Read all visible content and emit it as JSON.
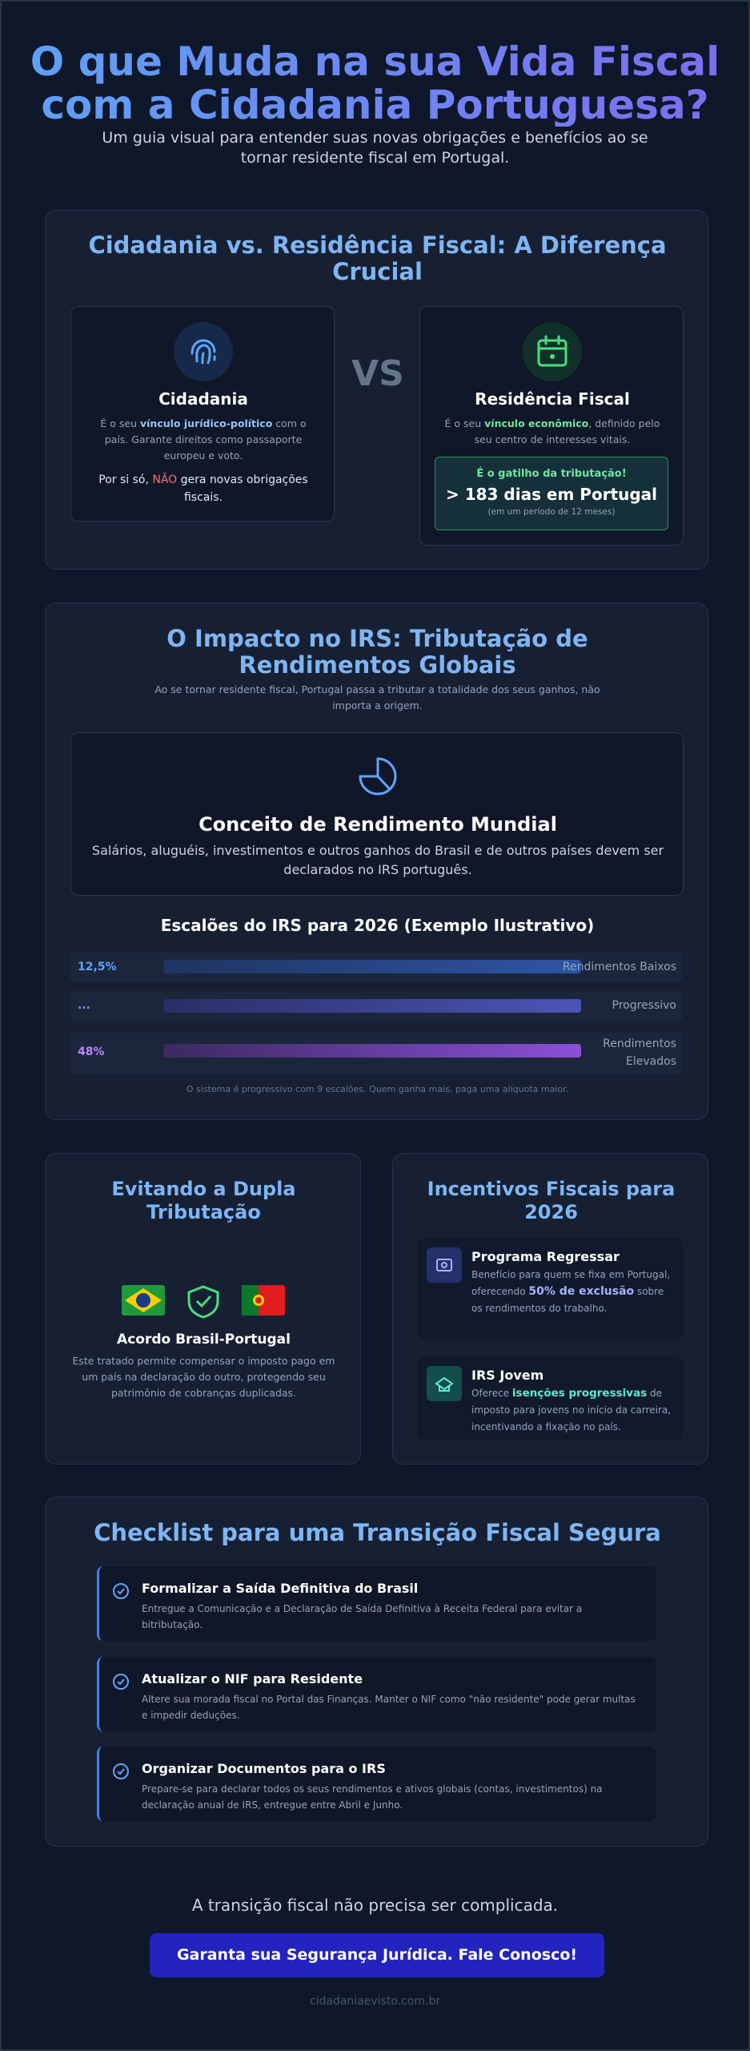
{
  "header": {
    "title_lines": [
      "O que Muda na sua Vida Fiscal",
      "com a Cidadania Portuguesa?"
    ],
    "subtitle": "Um guia visual para entender suas novas obrigações e benefícios ao se tornar residente fiscal em Portugal."
  },
  "comparison": {
    "title": "Cidadania vs. Residência Fiscal: A Diferença Crucial",
    "vs": "VS",
    "citizenship": {
      "title": "Cidadania",
      "desc": [
        "É o seu ",
        "vínculo jurídico-político",
        " com o país. Garante direitos como passaporte europeu e voto."
      ],
      "note": [
        "Por si só, ",
        "NÃO",
        " gera novas obrigações fiscais."
      ]
    },
    "residence": {
      "title": "Residência Fiscal",
      "desc": [
        "É o seu ",
        "vínculo econômico",
        ", definido pelo seu centro de interesses vitais."
      ],
      "callout": {
        "label": "É o gatilho da tributação!",
        "value": "> 183 dias em Portugal",
        "note": "(em um período de 12 meses)"
      }
    }
  },
  "irs": {
    "title": "O Impacto no IRS: Tributação de Rendimentos Globais",
    "subtitle": "Ao se tornar residente fiscal, Portugal passa a tributar a totalidade dos seus ganhos, não importa a origem.",
    "concept": {
      "title": "Conceito de Rendimento Mundial",
      "text": "Salários, aluguéis, investimentos e outros ganhos do Brasil e de outros países devem ser declarados no IRS português."
    },
    "brackets": {
      "title": "Escalões do IRS para 2026 (Exemplo Ilustrativo)",
      "rows": [
        {
          "rate": "12,5%",
          "label": "Rendimentos Baixos"
        },
        {
          "rate": "...",
          "label": "Progressivo"
        },
        {
          "rate": "48%",
          "label": "Rendimentos Elevados"
        }
      ],
      "note": "O sistema é progressivo com 9 escalões. Quem ganha mais, paga uma alíquota maior."
    }
  },
  "double_tax": {
    "title": "Evitando a Dupla Tributação",
    "agreement": "Acordo Brasil-Portugal",
    "text": "Este tratado permite compensar o imposto pago em um país na declaração do outro, protegendo seu patrimônio de cobranças duplicadas."
  },
  "incentives": {
    "title": "Incentivos Fiscais para 2026",
    "items": [
      {
        "title": "Programa Regressar",
        "text": [
          "Benefício para quem se fixa em Portugal, oferecendo ",
          "50% de exclusão",
          " sobre os rendimentos do trabalho."
        ]
      },
      {
        "title": "IRS Jovem",
        "text": [
          "Oferece ",
          "isenções progressivas",
          " de imposto para jovens no início da carreira, incentivando a fixação no país."
        ]
      }
    ]
  },
  "checklist": {
    "title": "Checklist para uma Transição Fiscal Segura",
    "items": [
      {
        "title": "Formalizar a Saída Definitiva do Brasil",
        "text": "Entregue a Comunicação e a Declaração de Saída Definitiva à Receita Federal para evitar a bitributação."
      },
      {
        "title": "Atualizar o NIF para Residente",
        "text": "Altere sua morada fiscal no Portal das Finanças. Manter o NIF como \"não residente\" pode gerar multas e impedir deduções."
      },
      {
        "title": "Organizar Documentos para o IRS",
        "text": "Prepare-se para declarar todos os seus rendimentos e ativos globais (contas, investimentos) na declaração anual de IRS, entregue entre Abril e Junho."
      }
    ]
  },
  "footer": {
    "tagline": "A transição fiscal não precisa ser complicada.",
    "button": "Garanta sua Segurança Jurídica. Fale Conosco!",
    "site": "cidadaniaevisto.com.br"
  }
}
